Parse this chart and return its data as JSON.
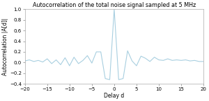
{
  "title": "Autocorrelation of the total noise signal sampled at 5 MHz",
  "xlabel": "Delay d",
  "ylabel": "Autocorrelation |A[d]|",
  "xlim": [
    -20,
    20
  ],
  "ylim": [
    -0.4,
    1.0
  ],
  "yticks": [
    -0.4,
    -0.2,
    0.0,
    0.2,
    0.4,
    0.6,
    0.8,
    1.0
  ],
  "xticks": [
    -20,
    -15,
    -10,
    -5,
    0,
    5,
    10,
    15,
    20
  ],
  "line_color": "#a8cfe0",
  "background_color": "#ffffff",
  "title_fontsize": 5.8,
  "label_fontsize": 5.5,
  "tick_fontsize": 5.0,
  "signal": [
    [
      -20,
      0.03
    ],
    [
      -19,
      0.05
    ],
    [
      -18,
      0.02
    ],
    [
      -17,
      0.04
    ],
    [
      -16,
      0.01
    ],
    [
      -15,
      0.07
    ],
    [
      -14,
      -0.02
    ],
    [
      -13,
      0.05
    ],
    [
      -12,
      -0.04
    ],
    [
      -11,
      0.09
    ],
    [
      -10,
      -0.06
    ],
    [
      -9,
      0.1
    ],
    [
      -8,
      -0.02
    ],
    [
      -7,
      0.04
    ],
    [
      -6,
      0.13
    ],
    [
      -5,
      -0.01
    ],
    [
      -4,
      0.2
    ],
    [
      -3,
      0.2
    ],
    [
      -2,
      -0.3
    ],
    [
      -1,
      -0.32
    ],
    [
      0,
      1.0
    ],
    [
      1,
      -0.32
    ],
    [
      2,
      -0.3
    ],
    [
      3,
      0.22
    ],
    [
      4,
      0.03
    ],
    [
      5,
      -0.06
    ],
    [
      6,
      0.12
    ],
    [
      7,
      0.08
    ],
    [
      8,
      0.02
    ],
    [
      9,
      0.1
    ],
    [
      10,
      0.05
    ],
    [
      11,
      0.04
    ],
    [
      12,
      0.07
    ],
    [
      13,
      0.04
    ],
    [
      14,
      0.05
    ],
    [
      15,
      0.04
    ],
    [
      16,
      0.05
    ],
    [
      17,
      0.03
    ],
    [
      18,
      0.04
    ],
    [
      19,
      0.02
    ],
    [
      20,
      0.02
    ]
  ]
}
